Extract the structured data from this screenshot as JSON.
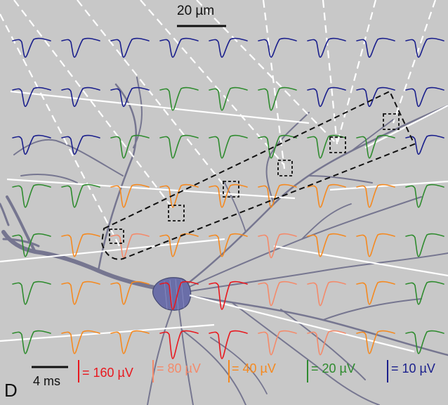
{
  "figure": {
    "panel_label": "D",
    "scale_bar_space": "20 µm",
    "scale_bar_time": "4 ms"
  },
  "legend": [
    {
      "label": "= 160 µV",
      "color": "#e8181e"
    },
    {
      "label": "= 80 µV",
      "color": "#f48a6a"
    },
    {
      "label": "= 40 µV",
      "color": "#f5891f"
    },
    {
      "label": "= 20 µV",
      "color": "#2e8b2e"
    },
    {
      "label": "= 10 µV",
      "color": "#1a1f8c"
    }
  ],
  "colors": {
    "background": "#c8c8c8",
    "neuron": "#6e6e8a",
    "soma": "#6a6ea8",
    "guide_lines": "#ffffff",
    "roi_box": "#111111"
  },
  "traces": [
    [
      "10",
      "10",
      "10",
      "10",
      "10",
      "10",
      "10",
      "10",
      "10"
    ],
    [
      "10",
      "10",
      "10",
      "20",
      "20",
      "20",
      "10",
      "10",
      "10"
    ],
    [
      "10",
      "10",
      "20",
      "20",
      "20",
      "20",
      "20",
      "20",
      "10"
    ],
    [
      "20",
      "20",
      "40",
      "40",
      "40",
      "40",
      "40",
      "40",
      "20"
    ],
    [
      "20",
      "40",
      "80",
      "40",
      "40",
      "80",
      "40",
      "40",
      "20"
    ],
    [
      "20",
      "40",
      "40",
      "160",
      "160",
      "80",
      "80",
      "40",
      "20"
    ],
    [
      "20",
      "40",
      "40",
      "160",
      "160",
      "80",
      "80",
      "40",
      "20"
    ]
  ],
  "trace_colors": {
    "160": "#e8181e",
    "80": "#f48a6a",
    "40": "#f5891f",
    "20": "#2e8b2e",
    "10": "#1a1f8c"
  },
  "trace_amplitude": {
    "160": 1.0,
    "80": 0.85,
    "40": 0.8,
    "20": 0.8,
    "10": 0.65
  }
}
